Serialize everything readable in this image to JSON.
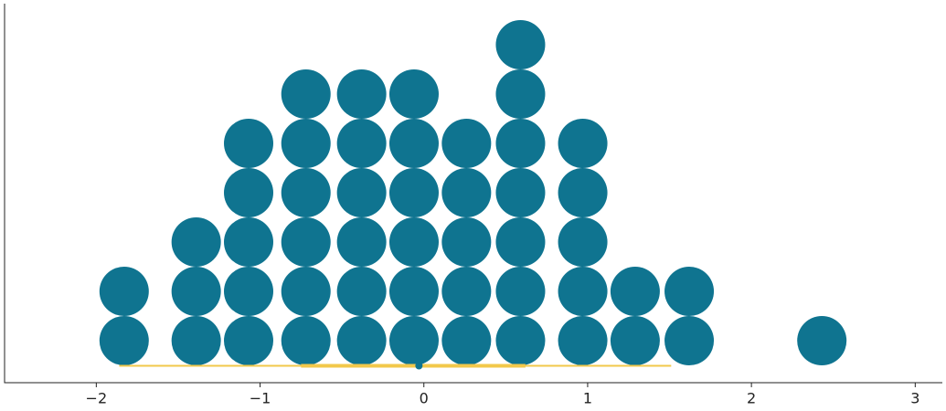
{
  "chart_data": {
    "type": "dotplot",
    "columns": [
      {
        "x": -1.83,
        "count": 2
      },
      {
        "x": -1.39,
        "count": 3
      },
      {
        "x": -1.07,
        "count": 5
      },
      {
        "x": -0.72,
        "count": 6
      },
      {
        "x": -0.38,
        "count": 6
      },
      {
        "x": -0.06,
        "count": 6
      },
      {
        "x": 0.26,
        "count": 5
      },
      {
        "x": 0.59,
        "count": 7
      },
      {
        "x": 0.97,
        "count": 5
      },
      {
        "x": 1.29,
        "count": 2
      },
      {
        "x": 1.62,
        "count": 2
      },
      {
        "x": 2.43,
        "count": 1
      }
    ],
    "color": "#0f7490",
    "interval": {
      "color": "#f2c84b",
      "outer": [
        -1.86,
        1.51
      ],
      "inner": [
        -0.75,
        0.62
      ],
      "point": -0.03
    },
    "xlim": [
      -2.56,
      3.16
    ],
    "xticks": [
      {
        "value": -2,
        "label": "−2"
      },
      {
        "value": -1,
        "label": "−1"
      },
      0,
      1,
      2,
      3
    ]
  }
}
